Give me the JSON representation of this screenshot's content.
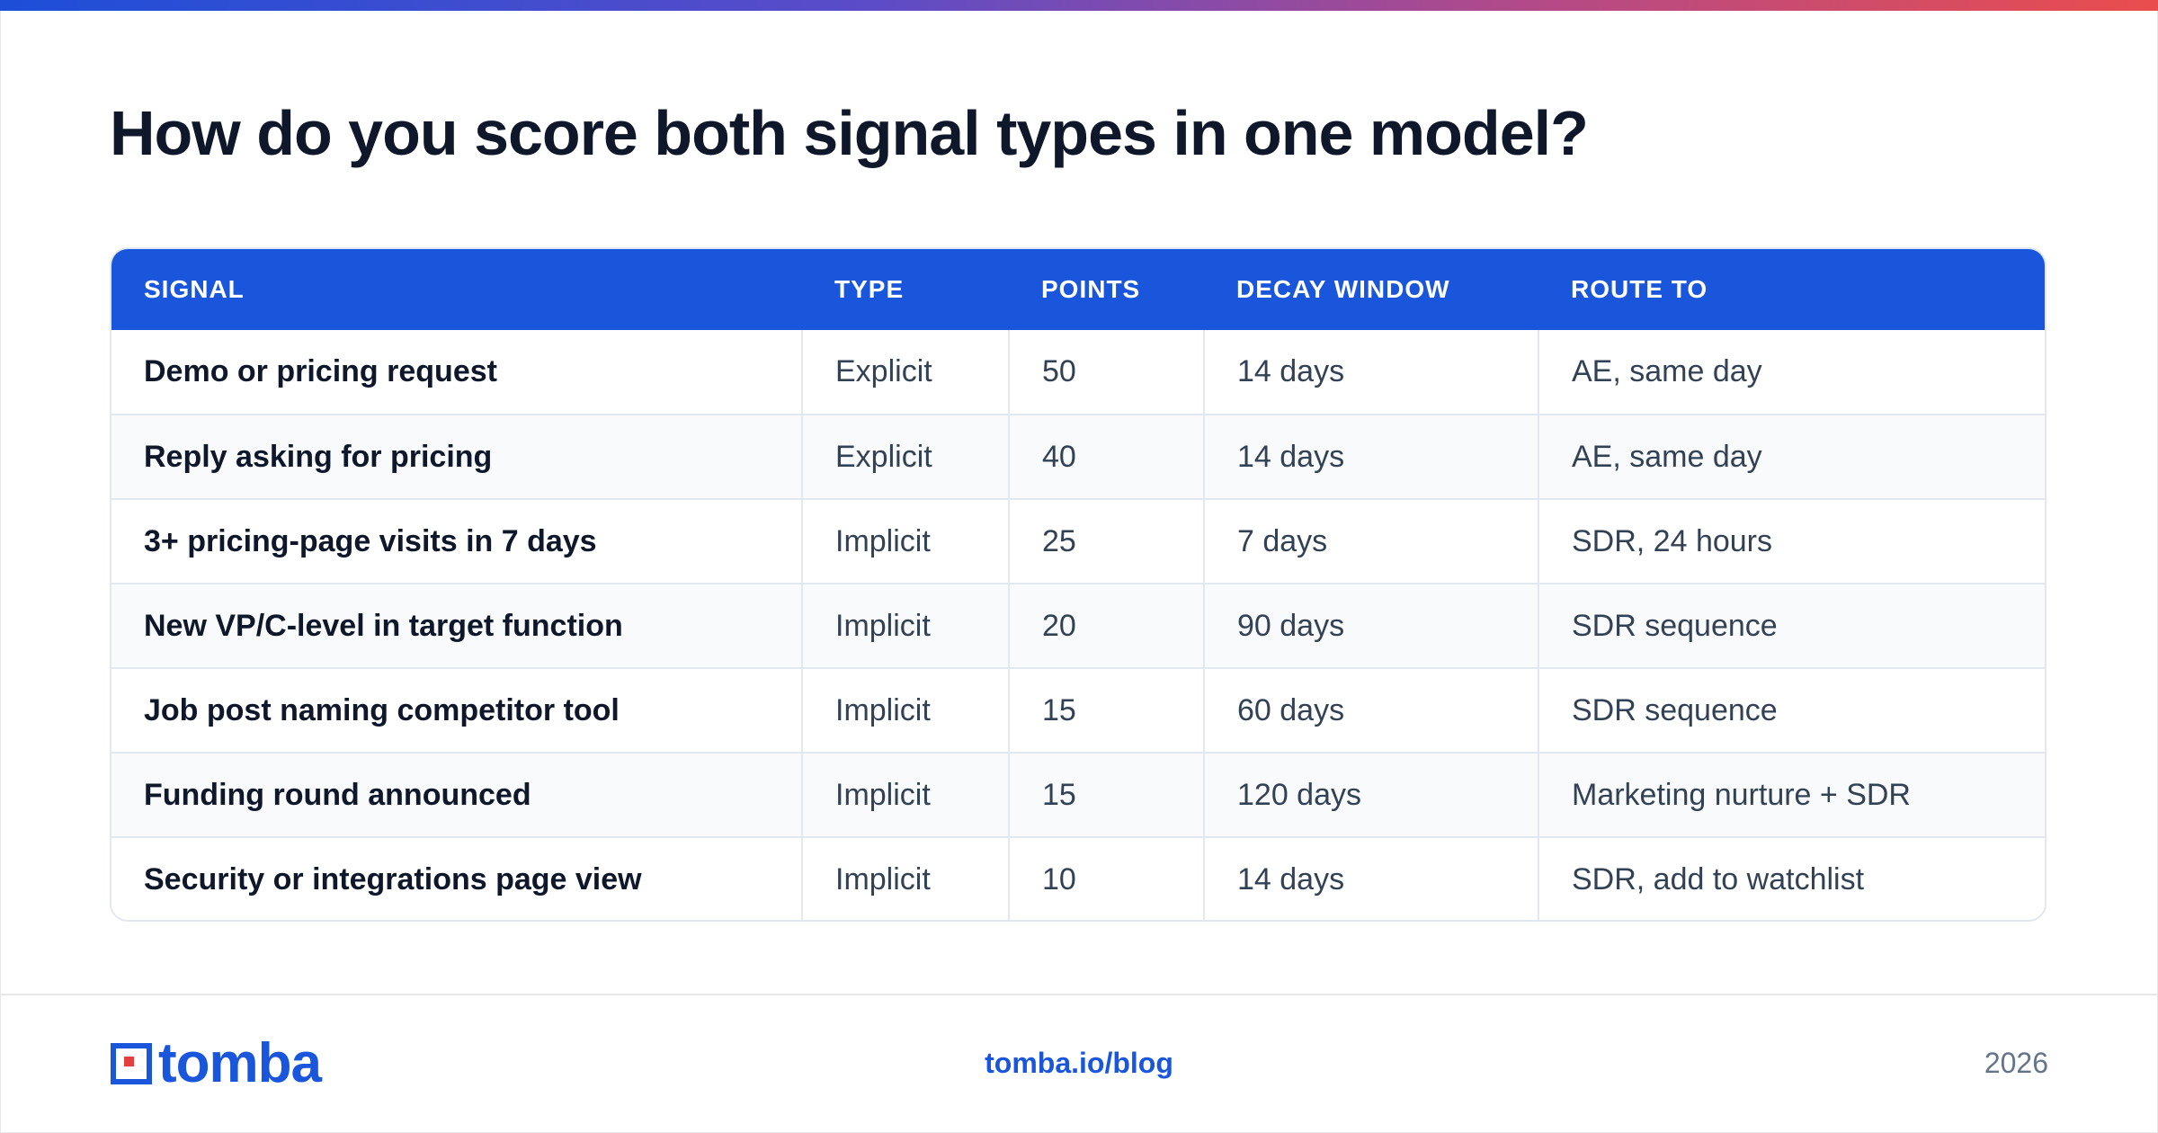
{
  "title": "How do you score both signal types in one model?",
  "table": {
    "headers": [
      "SIGNAL",
      "TYPE",
      "POINTS",
      "DECAY WINDOW",
      "ROUTE TO"
    ],
    "rows": [
      [
        "Demo or pricing request",
        "Explicit",
        "50",
        "14 days",
        "AE, same day"
      ],
      [
        "Reply asking for pricing",
        "Explicit",
        "40",
        "14 days",
        "AE, same day"
      ],
      [
        "3+ pricing-page visits in 7 days",
        "Implicit",
        "25",
        "7 days",
        "SDR, 24 hours"
      ],
      [
        "New VP/C-level in target function",
        "Implicit",
        "20",
        "90 days",
        "SDR sequence"
      ],
      [
        "Job post naming competitor tool",
        "Implicit",
        "15",
        "60 days",
        "SDR sequence"
      ],
      [
        "Funding round announced",
        "Implicit",
        "15",
        "120 days",
        "Marketing nurture + SDR"
      ],
      [
        "Security or integrations page view",
        "Implicit",
        "10",
        "14 days",
        "SDR, add to watchlist"
      ]
    ]
  },
  "footer": {
    "logo_text": "tomba",
    "link": "tomba.io/blog",
    "year": "2026"
  },
  "colors": {
    "accent": "#1a56db",
    "logo_red": "#e53e3e",
    "title": "#0f172a"
  }
}
